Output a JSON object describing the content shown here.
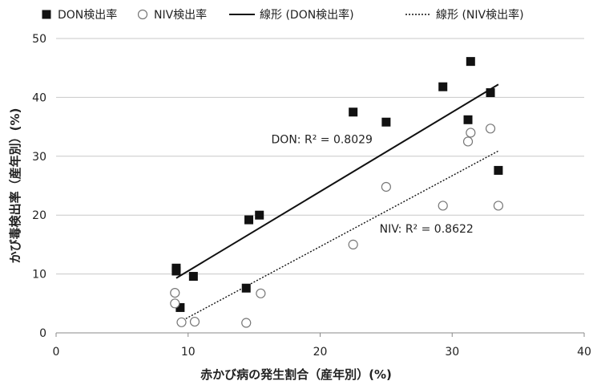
{
  "chart_data": {
    "type": "scatter",
    "xlabel": "赤かび病の発生割合（産年別）(%)",
    "ylabel": "かび毒検出率（産年別）(%)",
    "xlim": [
      0,
      40
    ],
    "ylim": [
      0,
      50
    ],
    "xticks": [
      "0",
      "10",
      "20",
      "30",
      "40"
    ],
    "yticks": [
      "0",
      "10",
      "20",
      "30",
      "40",
      "50"
    ],
    "grid": "horizontal",
    "legend_position": "top",
    "legend": [
      {
        "label": "DON検出率",
        "marker": "filled-square"
      },
      {
        "label": "NIV検出率",
        "marker": "open-circle"
      },
      {
        "label": "線形 (DON検出率)",
        "line": "solid"
      },
      {
        "label": "線形 (NIV検出率)",
        "line": "dotted"
      }
    ],
    "series": [
      {
        "name": "DON検出率",
        "marker": "filled-square",
        "color": "#111111",
        "points": [
          [
            9.1,
            11.0
          ],
          [
            9.1,
            10.5
          ],
          [
            9.4,
            4.3
          ],
          [
            10.4,
            9.6
          ],
          [
            14.4,
            7.6
          ],
          [
            14.6,
            19.2
          ],
          [
            15.4,
            20.0
          ],
          [
            22.5,
            37.5
          ],
          [
            25.0,
            35.8
          ],
          [
            29.3,
            41.8
          ],
          [
            31.2,
            36.2
          ],
          [
            31.4,
            46.1
          ],
          [
            32.9,
            40.8
          ],
          [
            33.5,
            27.6
          ]
        ],
        "trend": {
          "x": [
            9.1,
            33.5
          ],
          "y": [
            9.3,
            42.2
          ],
          "style": "solid"
        }
      },
      {
        "name": "NIV検出率",
        "marker": "open-circle",
        "color": "#666666",
        "points": [
          [
            9.0,
            6.8
          ],
          [
            9.0,
            5.0
          ],
          [
            9.5,
            1.8
          ],
          [
            10.5,
            1.9
          ],
          [
            14.4,
            1.7
          ],
          [
            15.5,
            6.7
          ],
          [
            22.5,
            15.0
          ],
          [
            25.0,
            24.8
          ],
          [
            29.3,
            21.6
          ],
          [
            31.2,
            32.5
          ],
          [
            31.4,
            34.0
          ],
          [
            32.9,
            34.7
          ],
          [
            33.5,
            21.6
          ]
        ],
        "trend": {
          "x": [
            9.4,
            33.5
          ],
          "y": [
            1.9,
            30.9
          ],
          "style": "dotted"
        }
      }
    ],
    "annotations": [
      {
        "text": "DON: R² = 0.8029",
        "x": 16.3,
        "y": 32.2
      },
      {
        "text": "NIV: R² = 0.8622",
        "x": 24.5,
        "y": 17.0
      }
    ]
  }
}
